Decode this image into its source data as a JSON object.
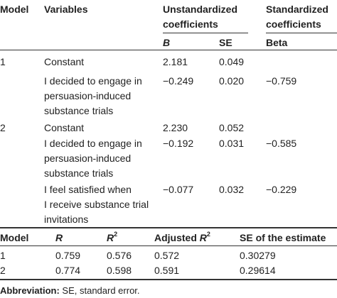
{
  "table1": {
    "headers": {
      "model": "Model",
      "variables": "Variables",
      "unstd_line1": "Unstandardized",
      "unstd_line2": "coefficients",
      "std_line1": "Standardized",
      "std_line2": "coefficients",
      "b": "B",
      "se": "SE",
      "beta": "Beta"
    },
    "rows": [
      {
        "model": "1",
        "var_lines": [
          "Constant"
        ],
        "b": "2.181",
        "se": "0.049",
        "beta": ""
      },
      {
        "model": "",
        "var_lines": [
          "I decided to engage in",
          "persuasion-induced",
          "substance trials"
        ],
        "b": "−0.249",
        "se": "0.020",
        "beta": "−0.759"
      },
      {
        "model": "2",
        "var_lines": [
          "Constant"
        ],
        "b": "2.230",
        "se": "0.052",
        "beta": ""
      },
      {
        "model": "",
        "var_lines": [
          "I decided to engage in",
          "persuasion-induced",
          "substance trials"
        ],
        "b": "−0.192",
        "se": "0.031",
        "beta": "−0.585"
      },
      {
        "model": "",
        "var_lines": [
          "I feel satisfied when",
          "I receive substance trial",
          "invitations"
        ],
        "b": "−0.077",
        "se": "0.032",
        "beta": "−0.229"
      }
    ]
  },
  "table2": {
    "headers": {
      "model": "Model",
      "r": "R",
      "r2": "R",
      "adj": "Adjusted ",
      "adj_r": "R",
      "sup2": "2",
      "see": "SE of the estimate"
    },
    "rows": [
      {
        "model": "1",
        "r": "0.759",
        "r2": "0.576",
        "adj": "0.572",
        "see": "0.30279"
      },
      {
        "model": "2",
        "r": "0.774",
        "r2": "0.598",
        "adj": "0.591",
        "see": "0.29614"
      }
    ]
  },
  "footnote": {
    "label": "Abbreviation:",
    "text": " SE, standard error."
  }
}
